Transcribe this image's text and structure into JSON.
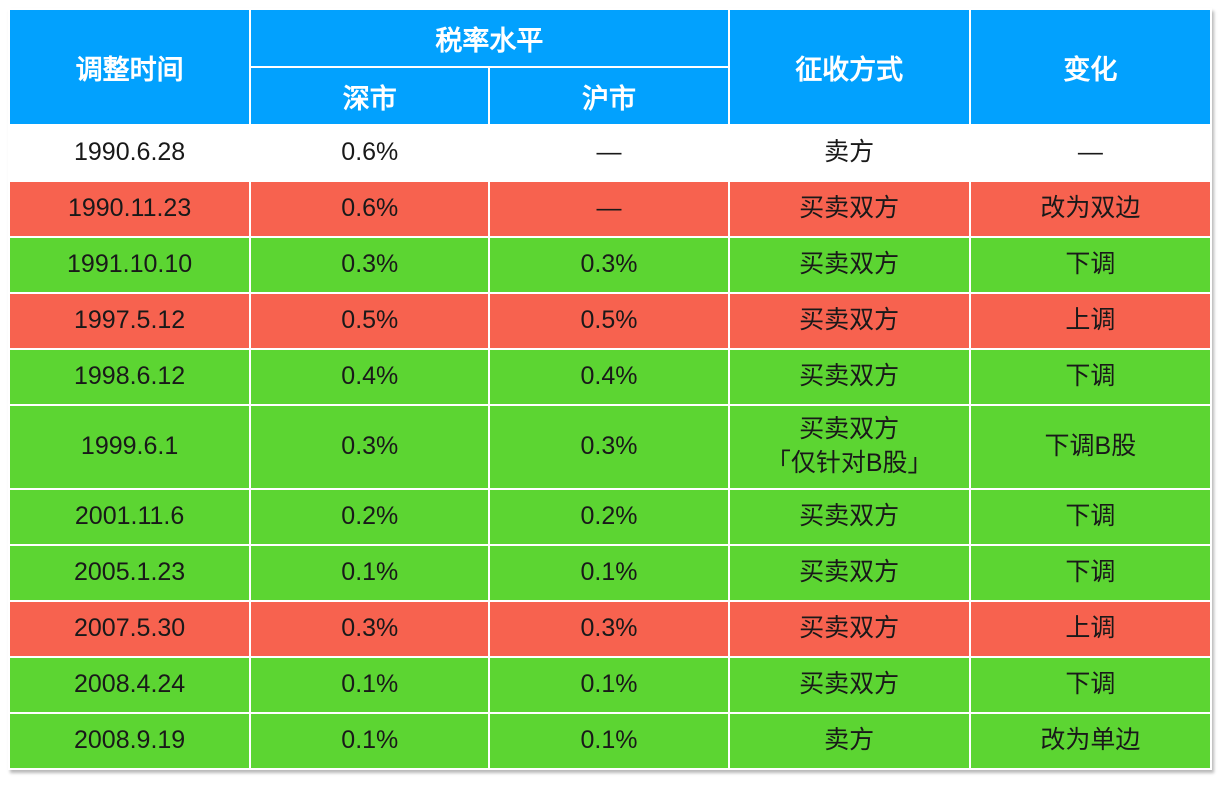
{
  "colors": {
    "header_bg": "#02a1fe",
    "header_text": "#ffffff",
    "body_text": "#191919",
    "row_white": "#ffffff",
    "row_red": "#f7624f",
    "row_green": "#5cd532"
  },
  "chart_data": {
    "type": "table",
    "columns": {
      "col_time": "调整时间",
      "col_rate_group": "税率水平",
      "col_sz": "深市",
      "col_sh": "沪市",
      "col_method": "征收方式",
      "col_change": "变化"
    },
    "rows": [
      {
        "date": "1990.6.28",
        "sz": "0.6%",
        "sh": "—",
        "method": "卖方",
        "method_note": "",
        "change": "—",
        "tone": "white"
      },
      {
        "date": "1990.11.23",
        "sz": "0.6%",
        "sh": "—",
        "method": "买卖双方",
        "method_note": "",
        "change": "改为双边",
        "tone": "red"
      },
      {
        "date": "1991.10.10",
        "sz": "0.3%",
        "sh": "0.3%",
        "method": "买卖双方",
        "method_note": "",
        "change": "下调",
        "tone": "green"
      },
      {
        "date": "1997.5.12",
        "sz": "0.5%",
        "sh": "0.5%",
        "method": "买卖双方",
        "method_note": "",
        "change": "上调",
        "tone": "red"
      },
      {
        "date": "1998.6.12",
        "sz": "0.4%",
        "sh": "0.4%",
        "method": "买卖双方",
        "method_note": "",
        "change": "下调",
        "tone": "green"
      },
      {
        "date": "1999.6.1",
        "sz": "0.3%",
        "sh": "0.3%",
        "method": "买卖双方",
        "method_note": "「仅针对B股」",
        "change": "下调B股",
        "tone": "green"
      },
      {
        "date": "2001.11.6",
        "sz": "0.2%",
        "sh": "0.2%",
        "method": "买卖双方",
        "method_note": "",
        "change": "下调",
        "tone": "green"
      },
      {
        "date": "2005.1.23",
        "sz": "0.1%",
        "sh": "0.1%",
        "method": "买卖双方",
        "method_note": "",
        "change": "下调",
        "tone": "green"
      },
      {
        "date": "2007.5.30",
        "sz": "0.3%",
        "sh": "0.3%",
        "method": "买卖双方",
        "method_note": "",
        "change": "上调",
        "tone": "red"
      },
      {
        "date": "2008.4.24",
        "sz": "0.1%",
        "sh": "0.1%",
        "method": "买卖双方",
        "method_note": "",
        "change": "下调",
        "tone": "green"
      },
      {
        "date": "2008.9.19",
        "sz": "0.1%",
        "sh": "0.1%",
        "method": "卖方",
        "method_note": "",
        "change": "改为单边",
        "tone": "green"
      }
    ]
  }
}
